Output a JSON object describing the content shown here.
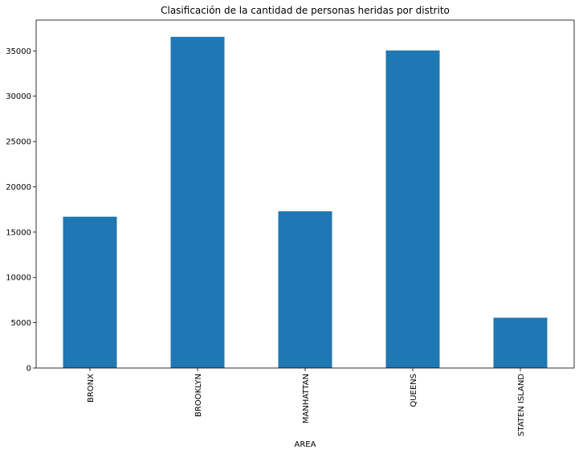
{
  "chart_data": {
    "type": "bar",
    "title": "Clasificación de la cantidad de personas heridas por distrito",
    "xlabel": "AREA",
    "ylabel": "",
    "categories": [
      "BRONX",
      "BROOKLYN",
      "MANHATTAN",
      "QUEENS",
      "STATEN ISLAND"
    ],
    "values": [
      16700,
      36550,
      17300,
      35050,
      5550
    ],
    "ylim": [
      0,
      38400
    ],
    "yticks": [
      0,
      5000,
      10000,
      15000,
      20000,
      25000,
      30000,
      35000
    ],
    "ytick_labels": [
      "0",
      "5000",
      "10000",
      "15000",
      "20000",
      "25000",
      "30000",
      "35000"
    ],
    "grid": false,
    "legend": "none",
    "bar_color": "#1f77b4"
  }
}
